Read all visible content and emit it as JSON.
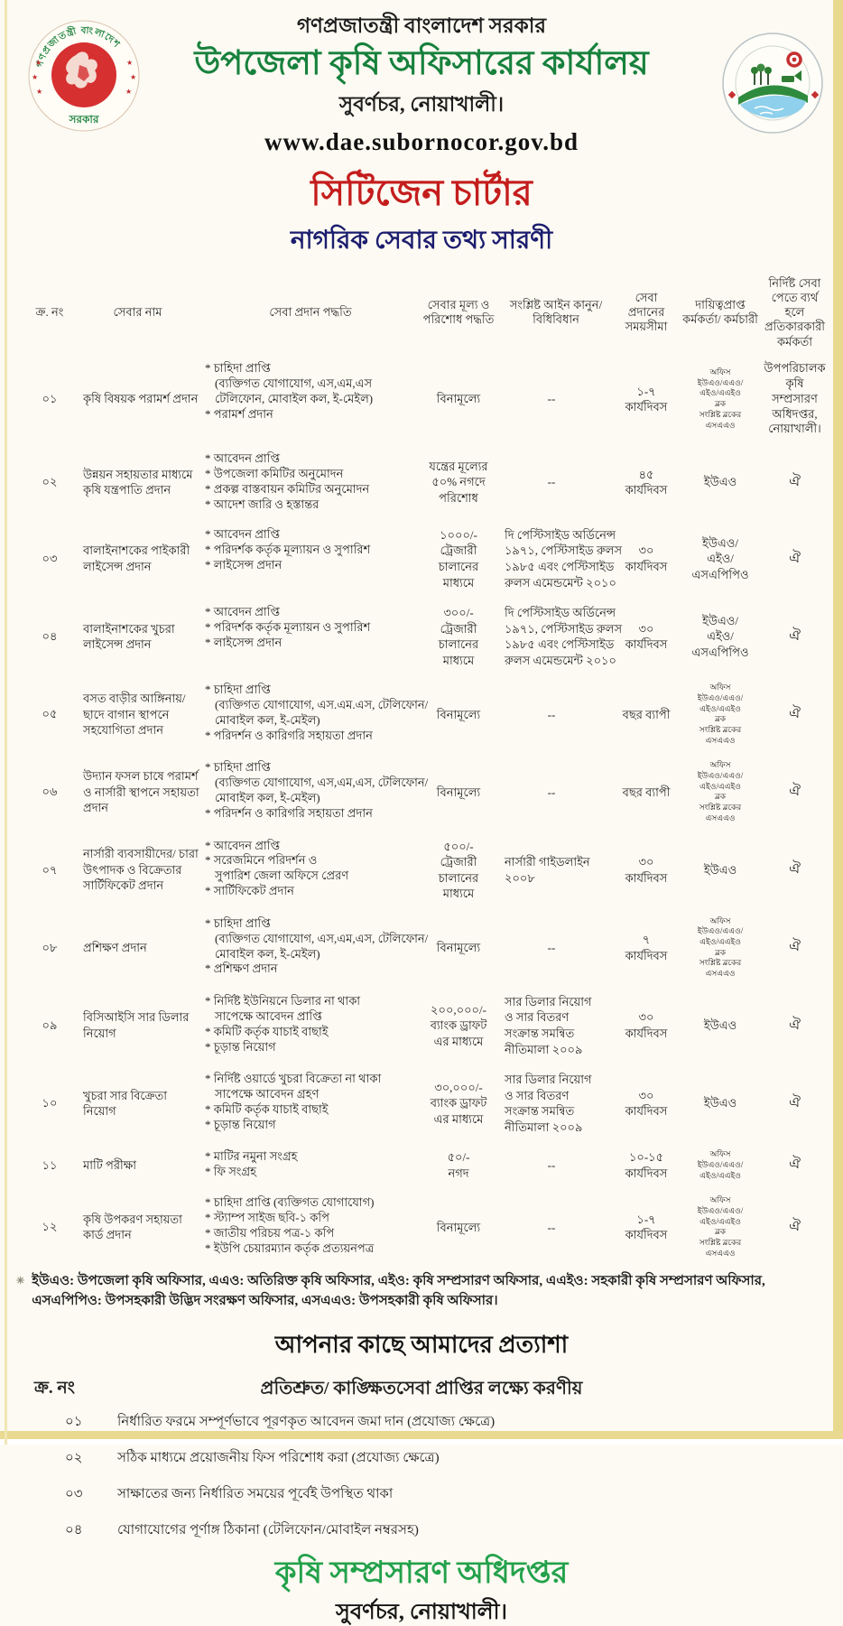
{
  "colors": {
    "title_green": "#17813d",
    "charter_red": "#c41d1d",
    "subtitle_navy": "#1b1c6e",
    "footer_green": "#23a14b",
    "paper": "#fcfaf2",
    "scan_edge_yellow": "#e9d98f"
  },
  "header": {
    "govt_line": "গণপ্রজাতন্ত্রী বাংলাদেশ সরকার",
    "office_title": "উপজেলা কৃষি অফিসারের কার্যালয়",
    "office_location": "সুবর্ণচর, নোয়াখালী।",
    "website": "www.dae.subornocor.gov.bd",
    "charter_title": "সিটিজেন চার্টার",
    "charter_subtitle": "নাগরিক সেবার তথ্য সারণী"
  },
  "logos": {
    "seal_icon": "bangladesh-government-seal",
    "seal_text_top": "গণপ্রজাতন্ত্রী বাংলাদেশ",
    "seal_text_bottom": "সরকার",
    "dae_icon": "dae-department-logo"
  },
  "table": {
    "headers": [
      "ক্র. নং",
      "সেবার নাম",
      "সেবা প্রদান পদ্ধতি",
      "সেবার মূল্য ও পরিশোধ পদ্ধতি",
      "সংশ্লিষ্ট আইন কানুন/ বিধিবিধান",
      "সেবা প্রদানের সময়সীমা",
      "দায়িত্বপ্রাপ্ত কর্মকর্তা/ কর্মচারী",
      "নির্দিষ্ট সেবা পেতে ব্যর্থ হলে প্রতিকারকারী কর্মকর্তা"
    ],
    "rows": [
      {
        "sl": "০১",
        "name": "কৃষি বিষয়ক পরামর্শ প্রদান",
        "method": [
          "* চাহিদা প্রাপ্তি",
          "(ব্যক্তিগত যোগাযোগ, এস,এম,এস",
          "টেলিফোন, মোবাইল কল, ই-মেইল)",
          "* পরামর্শ প্রদান"
        ],
        "price": [
          "বিনামূল্যে"
        ],
        "law": [
          "--"
        ],
        "time": [
          "১-৭",
          "কার্যদিবস"
        ],
        "officer": [
          "অফিস",
          "ইউএও/এএও/",
          "এইও/এএইও",
          "ব্লক",
          "সংশ্লিষ্ট ব্লকের",
          "এসএএও"
        ],
        "officer_small": true,
        "remedy": [
          "উপপরিচালক",
          "কৃষি সম্প্রসারণ",
          "অধিদপ্তর,",
          "নোয়াখালী।"
        ]
      },
      {
        "sl": "০২",
        "name": "উন্নয়ন সহায়তার মাধ্যমে কৃষি যন্ত্রপাতি প্রদান",
        "method": [
          "* আবেদন প্রাপ্তি",
          "* উপজেলা কমিটির অনুমোদন",
          "* প্রকল্প বাস্তবায়ন কমিটির অনুমোদন",
          "* আদেশ জারি ও হস্তান্তর"
        ],
        "price": [
          "যন্ত্রের মূল্যের",
          "৫০% নগদে",
          "পরিশোধ"
        ],
        "law": [
          "--"
        ],
        "time": [
          "৪৫",
          "কার্যদিবস"
        ],
        "officer": [
          "ইউএও"
        ],
        "officer_small": false,
        "remedy": [
          "ঐ"
        ]
      },
      {
        "sl": "০৩",
        "name": "বালাইনাশকের পাইকারী লাইসেন্স প্রদান",
        "method": [
          "* আবেদন প্রাপ্তি",
          "* পরিদর্শক কর্তৃক মূল্যায়ন ও সুপারিশ",
          "* লাইসেন্স প্রদান"
        ],
        "price": [
          "১০০০/-",
          "ট্রেজারী",
          "চালানের",
          "মাধ্যমে"
        ],
        "law": [
          "দি পেস্টিসাইড অর্ডিনেন্স",
          "১৯৭১, পেস্টিসাইড রুলস",
          "১৯৮৫ এবং পেস্টিসাইড",
          "রুলস এমেন্ডমেন্ট ২০১০"
        ],
        "time": [
          "৩০",
          "কার্যদিবস"
        ],
        "officer": [
          "ইউএও/",
          "এইও/",
          "এসএপিপিও"
        ],
        "officer_small": false,
        "remedy": [
          "ঐ"
        ]
      },
      {
        "sl": "০৪",
        "name": "বালাইনাশকের খুচরা লাইসেন্স প্রদান",
        "method": [
          "* আবেদন প্রাপ্তি",
          "* পরিদর্শক কর্তৃক মূল্যায়ন ও সুপারিশ",
          "* লাইসেন্স প্রদান"
        ],
        "price": [
          "৩০০/-",
          "ট্রেজারী",
          "চালানের",
          "মাধ্যমে"
        ],
        "law": [
          "দি পেস্টিসাইড অর্ডিনেন্স",
          "১৯৭১, পেস্টিসাইড রুলস",
          "১৯৮৫ এবং পেস্টিসাইড",
          "রুলস এমেন্ডমেন্ট ২০১০"
        ],
        "time": [
          "৩০",
          "কার্যদিবস"
        ],
        "officer": [
          "ইউএও/",
          "এইও/",
          "এসএপিপিও"
        ],
        "officer_small": false,
        "remedy": [
          "ঐ"
        ]
      },
      {
        "sl": "০৫",
        "name": "বসত বাড়ীর আঙ্গিনায়/ ছাদে বাগান স্থাপনে সহযোগিতা প্রদান",
        "method": [
          "* চাহিদা প্রাপ্তি",
          "(ব্যক্তিগত যোগাযোগ, এস.এম.এস, টেলিফোন/",
          "মোবাইল কল, ই-মেইল)",
          "* পরিদর্শন ও কারিগরি সহায়তা প্রদান"
        ],
        "price": [
          "বিনামূল্যে"
        ],
        "law": [
          "--"
        ],
        "time": [
          "বছর ব্যাপী"
        ],
        "officer": [
          "অফিস",
          "ইউএও/এএও/",
          "এইও/এএইও",
          "ব্লক",
          "সংশ্লিষ্ট ব্লকের",
          "এসএএও"
        ],
        "officer_small": true,
        "remedy": [
          "ঐ"
        ]
      },
      {
        "sl": "০৬",
        "name": "উদ্যান ফসল চাষে পরামর্শ ও নার্সারী স্থাপনে সহায়তা প্রদান",
        "method": [
          "* চাহিদা প্রাপ্তি",
          "(ব্যক্তিগত যোগাযোগ, এস,এম,এস, টেলিফোন/",
          "মোবাইল কল, ই-মেইল)",
          "* পরিদর্শন ও কারিগরি সহায়তা প্রদান"
        ],
        "price": [
          "বিনামূল্যে"
        ],
        "law": [
          "--"
        ],
        "time": [
          "বছর ব্যাপী"
        ],
        "officer": [
          "অফিস",
          "ইউএও/এএও/",
          "এইও/এএইও",
          "ব্লক",
          "সংশ্লিষ্ট ব্লকের",
          "এসএএও"
        ],
        "officer_small": true,
        "remedy": [
          "ঐ"
        ]
      },
      {
        "sl": "০৭",
        "name": "নার্সারী ব্যবসায়ীদের/ চারা উৎপাদক ও বিক্রেতার সার্টিফিকেট প্রদান",
        "method": [
          "* আবেদন প্রাপ্তি",
          "* সরেজমিনে পরিদর্শন ও",
          "সুপারিশ জেলা অফিসে প্রেরণ",
          "* সার্টিফিকেট প্রদান"
        ],
        "price": [
          "৫০০/-",
          "ট্রেজারী",
          "চালানের",
          "মাধ্যমে"
        ],
        "law": [
          "নার্সারী গাইডলাইন",
          "২০০৮"
        ],
        "time": [
          "৩০",
          "কার্যদিবস"
        ],
        "officer": [
          "ইউএও"
        ],
        "officer_small": false,
        "remedy": [
          "ঐ"
        ]
      },
      {
        "sl": "০৮",
        "name": "প্রশিক্ষণ প্রদান",
        "method": [
          "* চাহিদা প্রাপ্তি",
          "(ব্যক্তিগত যোগাযোগ, এস,এম,এস, টেলিফোন/",
          "মোবাইল কল, ই-মেইল)",
          "* প্রশিক্ষণ প্রদান"
        ],
        "price": [
          "বিনামূল্যে"
        ],
        "law": [
          "--"
        ],
        "time": [
          "৭",
          "কার্যদিবস"
        ],
        "officer": [
          "অফিস",
          "ইউএও/এএও/",
          "এইও/এএইও",
          "ব্লক",
          "সংশ্লিষ্ট ব্লকের",
          "এসএএও"
        ],
        "officer_small": true,
        "remedy": [
          "ঐ"
        ]
      },
      {
        "sl": "০৯",
        "name": "বিসিআইসি সার ডিলার নিয়োগ",
        "method": [
          "* নির্দিষ্ট ইউনিয়নে ডিলার না থাকা",
          "সাপেক্ষে আবেদন প্রাপ্তি",
          "* কমিটি কর্তৃক যাচাই বাছাই",
          "* চূড়ান্ত নিয়োগ"
        ],
        "price": [
          "২০০,০০০/-",
          "ব্যাংক ড্রাফট",
          "এর মাধ্যমে"
        ],
        "law": [
          "সার ডিলার নিয়োগ",
          "ও সার বিতরণ",
          "সংক্রান্ত সমন্বিত",
          "নীতিমালা ২০০৯"
        ],
        "time": [
          "৩০",
          "কার্যদিবস"
        ],
        "officer": [
          "ইউএও"
        ],
        "officer_small": false,
        "remedy": [
          "ঐ"
        ]
      },
      {
        "sl": "১০",
        "name": "খুচরা সার বিক্রেতা নিয়োগ",
        "method": [
          "* নির্দিষ্ট ওয়ার্ডে খুচরা বিক্রেতা না থাকা",
          "সাপেক্ষে আবেদন গ্রহণ",
          "* কমিটি কর্তৃক যাচাই বাছাই",
          "* চূড়ান্ত নিয়োগ"
        ],
        "price": [
          "৩০,০০০/-",
          "ব্যাংক ড্রাফট",
          "এর মাধ্যমে"
        ],
        "law": [
          "সার ডিলার নিয়োগ",
          "ও সার বিতরণ",
          "সংক্রান্ত সমন্বিত",
          "নীতিমালা ২০০৯"
        ],
        "time": [
          "৩০",
          "কার্যদিবস"
        ],
        "officer": [
          "ইউএও"
        ],
        "officer_small": false,
        "remedy": [
          "ঐ"
        ]
      },
      {
        "sl": "১১",
        "name": "মাটি পরীক্ষা",
        "method": [
          "* মাটির নমুনা সংগ্রহ",
          "* ফি সংগ্রহ"
        ],
        "price": [
          "৫০/-",
          "নগদ"
        ],
        "law": [
          "--"
        ],
        "time": [
          "১০-১৫",
          "কার্যদিবস"
        ],
        "officer": [
          "অফিস",
          "ইউএও/এএও/",
          "এইও/এএইও"
        ],
        "officer_small": true,
        "remedy": [
          "ঐ"
        ]
      },
      {
        "sl": "১২",
        "name": "কৃষি উপকরণ সহায়তা কার্ড প্রদান",
        "method": [
          "* চাহিদা প্রাপ্তি (ব্যক্তিগত যোগাযোগ)",
          "* স্ট্যাম্প সাইজ ছবি-১ কপি",
          "* জাতীয় পরিচয় পত্র-১ কপি",
          "* ইউপি চেয়ারম্যান কর্তৃক প্রত্যয়নপত্র"
        ],
        "price": [
          "বিনামূল্যে"
        ],
        "law": [
          "--"
        ],
        "time": [
          "১-৭",
          "কার্যদিবস"
        ],
        "officer": [
          "অফিস",
          "ইউএও/এএও/",
          "এইও/এএইও",
          "ব্লক",
          "সংশ্লিষ্ট ব্লকের",
          "এসএএও"
        ],
        "officer_small": true,
        "remedy": [
          "ঐ"
        ]
      }
    ]
  },
  "footnote": {
    "marker": "✳",
    "text": "ইউএও: উপজেলা কৃষি অফিসার, এএও: অতিরিক্ত কৃষি অফিসার, এইও: কৃষি সম্প্রসারণ অফিসার, এএইও: সহকারী কৃষি সম্প্রসারণ অফিসার, এসএপিপিও: উপসহকারী উদ্ভিদ সংরক্ষণ অফিসার, এসএএও: উপসহকারী কৃষি অফিসার।"
  },
  "expectation": {
    "title": "আপনার কাছে আমাদের প্রত্যাশা",
    "col_sl": "ক্র. নং",
    "col_title": "প্রতিশ্রুত/ কাঙ্ক্ষিতসেবা প্রাপ্তির লক্ষ্যে করণীয়",
    "items": [
      {
        "sl": "০১",
        "text": "নির্ধারিত ফরমে সম্পূর্ণভাবে পূরণকৃত আবেদন জমা দান (প্রযোজ্য ক্ষেত্রে)"
      },
      {
        "sl": "০২",
        "text": "সঠিক মাধ্যমে প্রয়োজনীয় ফিস পরিশোধ করা (প্রযোজ্য ক্ষেত্রে)"
      },
      {
        "sl": "০৩",
        "text": "সাক্ষাতের জন্য নির্ধারিত সময়ের পূর্বেই উপস্থিত থাকা"
      },
      {
        "sl": "০৪",
        "text": "যোগাযোগের পূর্ণাঙ্গ ঠিকানা (টেলিফোন/মোবাইল নম্বরসহ)"
      }
    ]
  },
  "footer": {
    "department": "কৃষি সম্প্রসারণ অধিদপ্তর",
    "location": "সুবর্ণচর, নোয়াখালী।"
  }
}
